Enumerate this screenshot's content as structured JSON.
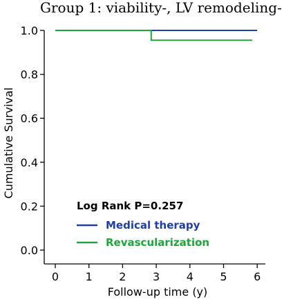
{
  "chart_data": {
    "type": "line",
    "title": "Group 1: viability-, LV remodeling-",
    "xlabel": "Follow-up time (y)",
    "ylabel": "Cumulative Survival",
    "xlim": [
      0,
      6.2
    ],
    "ylim": [
      0,
      1
    ],
    "xticks": [
      "0",
      "1",
      "2",
      "3",
      "4",
      "5",
      "6"
    ],
    "yticks": [
      "0.0",
      "0.2",
      "0.4",
      "0.6",
      "0.8",
      "1.0"
    ],
    "annotation": "Log Rank P=0.257",
    "legend_position": "bottom-left",
    "grid": false,
    "series": [
      {
        "name": "Medical therapy",
        "color": "#1f3fa8",
        "steps": [
          [
            0,
            1.0
          ],
          [
            6.0,
            1.0
          ]
        ]
      },
      {
        "name": "Revascularization",
        "color": "#1aa83a",
        "steps": [
          [
            0,
            1.0
          ],
          [
            2.85,
            1.0
          ],
          [
            2.85,
            0.955
          ],
          [
            5.85,
            0.955
          ]
        ]
      }
    ]
  }
}
